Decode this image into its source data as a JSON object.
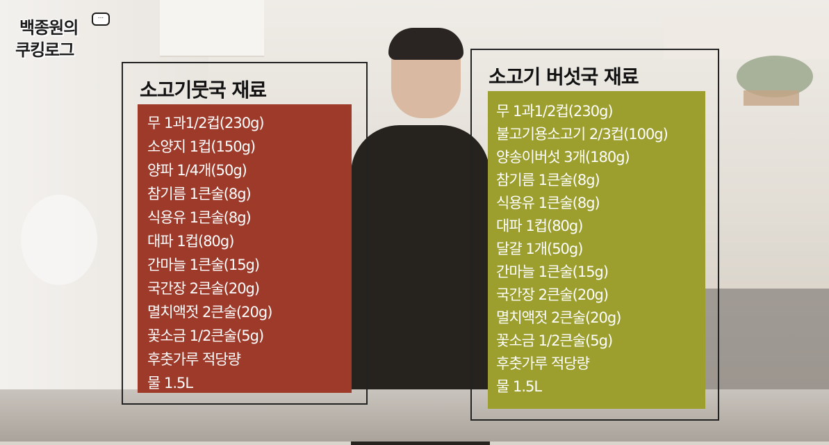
{
  "logo": {
    "line1": "백종원의",
    "line2": "쿠킹로그",
    "bubble": "..."
  },
  "left_panel": {
    "title": "소고기뭇국 재료",
    "background_color": "#9e3a2a",
    "items": [
      "무 1과1/2컵(230g)",
      "소양지 1컵(150g)",
      "양파 1/4개(50g)",
      "참기름 1큰술(8g)",
      "식용유 1큰술(8g)",
      "대파 1컵(80g)",
      "간마늘 1큰술(15g)",
      "국간장 2큰술(20g)",
      "멸치액젓 2큰술(20g)",
      "꽃소금 1/2큰술(5g)",
      "후춧가루 적당량",
      "물 1.5L"
    ]
  },
  "right_panel": {
    "title": "소고기 버섯국 재료",
    "background_color": "#9c9f2e",
    "items": [
      "무 1과1/2컵(230g)",
      "불고기용소고기 2/3컵(100g)",
      "양송이버섯 3개(180g)",
      "참기름 1큰술(8g)",
      "식용유 1큰술(8g)",
      "대파 1컵(80g)",
      "달걀 1개(50g)",
      "간마늘 1큰술(15g)",
      "국간장 2큰술(20g)",
      "멸치액젓 2큰술(20g)",
      "꽃소금 1/2큰술(5g)",
      "후춧가루 적당량",
      "물 1.5L"
    ]
  }
}
